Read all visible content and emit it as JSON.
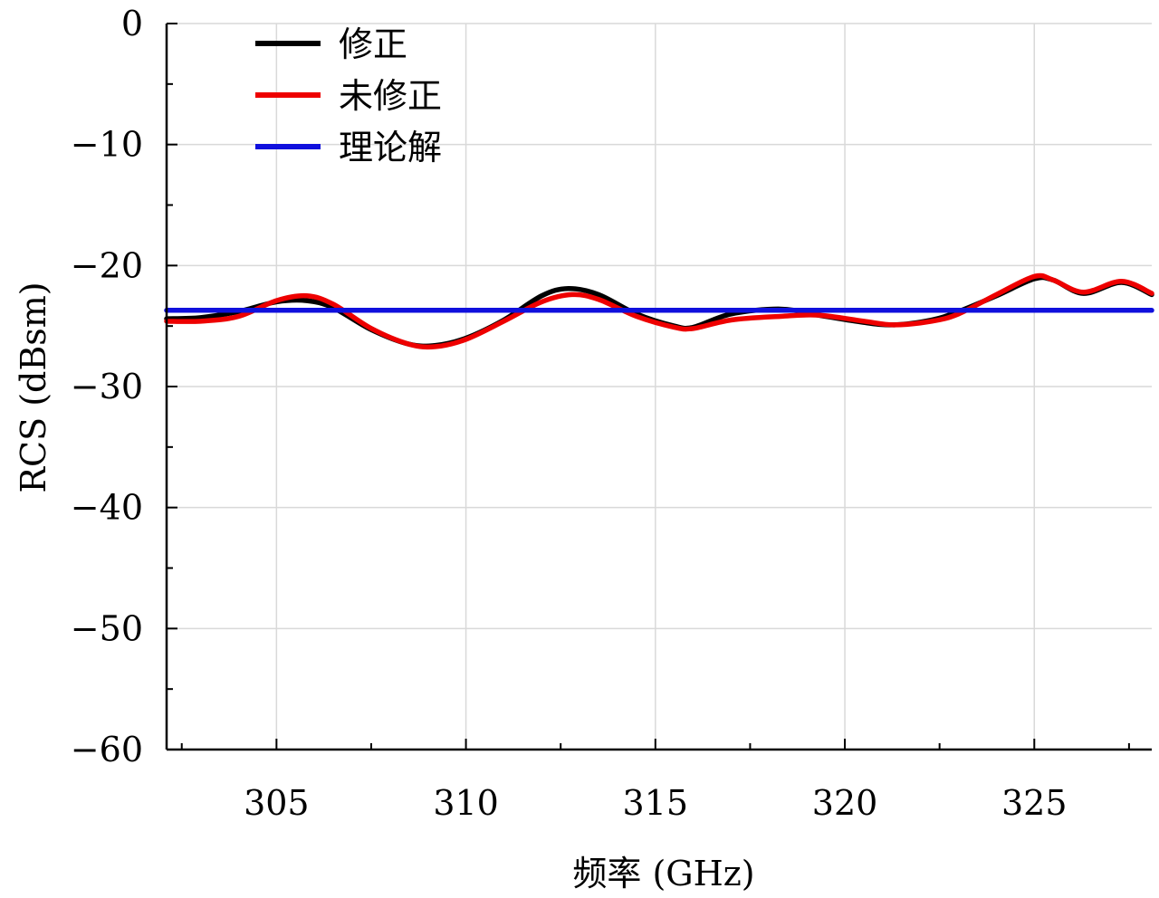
{
  "chart_data": {
    "type": "line",
    "xlabel": "频率 (GHz)",
    "ylabel": "RCS (dBsm)",
    "xlim": [
      302.1,
      328.1
    ],
    "ylim": [
      -60,
      0
    ],
    "xticks": [
      305,
      310,
      315,
      320,
      325
    ],
    "xtick_labels": [
      "305",
      "310",
      "315",
      "320",
      "325"
    ],
    "yticks": [
      0,
      -10,
      -20,
      -30,
      -40,
      -50,
      -60
    ],
    "ytick_labels": [
      "0",
      "−10",
      "−20",
      "−30",
      "−40",
      "−50",
      "−60"
    ],
    "grid": true,
    "legend_position": "top-left",
    "series": [
      {
        "name": "修正",
        "color": "#000000",
        "x": [
          302.1,
          303,
          304,
          305,
          305.8,
          306.5,
          307.5,
          308.5,
          309.2,
          310,
          311,
          312,
          312.7,
          313.5,
          314.5,
          315.5,
          316,
          317,
          318.3,
          319.3,
          320.5,
          321.3,
          322.3,
          323,
          324,
          325,
          325.5,
          326.3,
          327.3,
          328.1
        ],
        "y": [
          -24.4,
          -24.3,
          -23.8,
          -23.0,
          -22.9,
          -23.5,
          -25.3,
          -26.5,
          -26.6,
          -26.0,
          -24.5,
          -22.5,
          -21.9,
          -22.4,
          -24.0,
          -25.0,
          -25.1,
          -24.0,
          -23.6,
          -24.1,
          -24.7,
          -24.9,
          -24.5,
          -23.8,
          -22.5,
          -21.1,
          -21.2,
          -22.3,
          -21.4,
          -22.4
        ]
      },
      {
        "name": "未修正",
        "color": "#ee0000",
        "x": [
          302.1,
          303,
          304,
          305,
          305.8,
          306.5,
          307.5,
          308.5,
          309.2,
          310,
          311,
          312,
          312.8,
          313.5,
          314.5,
          315.5,
          316,
          317,
          318.3,
          319.3,
          320.5,
          321.3,
          322.3,
          323,
          324,
          325,
          325.5,
          326.3,
          327.3,
          328.1
        ],
        "y": [
          -24.6,
          -24.6,
          -24.2,
          -22.9,
          -22.5,
          -23.2,
          -25.2,
          -26.5,
          -26.7,
          -26.1,
          -24.6,
          -23.0,
          -22.4,
          -22.8,
          -24.2,
          -25.1,
          -25.2,
          -24.5,
          -24.2,
          -24.1,
          -24.6,
          -24.9,
          -24.6,
          -24.0,
          -22.4,
          -20.9,
          -21.2,
          -22.2,
          -21.3,
          -22.3
        ]
      },
      {
        "name": "理论解",
        "color": "#1010dd",
        "x": [
          302.1,
          328.1
        ],
        "y": [
          -23.7,
          -23.7
        ]
      }
    ]
  }
}
